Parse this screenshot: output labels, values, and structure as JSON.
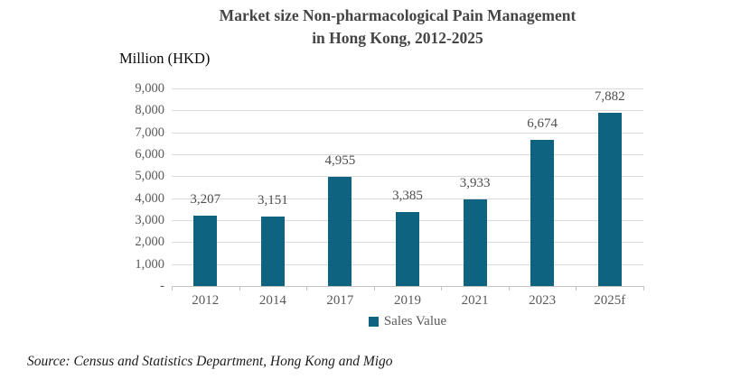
{
  "chart": {
    "title_line1": "Market size Non-pharmacological Pain Management",
    "title_line2": "in Hong Kong, 2012-2025",
    "axis_unit_label": "Million (HKD)",
    "legend_label": "Sales Value",
    "source": "Source: Census and Statistics Department, Hong Kong and Migo"
  },
  "chart_data": {
    "type": "bar",
    "title": "Market size Non-pharmacological Pain Management in Hong Kong, 2012-2025",
    "categories": [
      "2012",
      "2014",
      "2017",
      "2019",
      "2021",
      "2023",
      "2025f"
    ],
    "series": [
      {
        "name": "Sales Value",
        "values": [
          3207,
          3151,
          4955,
          3385,
          3933,
          6674,
          7882
        ]
      }
    ],
    "value_labels": [
      "3,207",
      "3,151",
      "4,955",
      "3,385",
      "3,933",
      "6,674",
      "7,882"
    ],
    "ylabel": "Million (HKD)",
    "ylim": [
      0,
      9000
    ],
    "ytick_interval": 1000,
    "ytick_labels": [
      "-",
      "1,000",
      "2,000",
      "3,000",
      "4,000",
      "5,000",
      "6,000",
      "7,000",
      "8,000",
      "9,000"
    ],
    "grid": true,
    "legend_position": "bottom"
  },
  "colors": {
    "bar": "#0e6380",
    "gridline": "#dadada",
    "axis_line": "#c4c4c4",
    "tick_label": "#595959",
    "value_label": "#4d4d4d",
    "title": "#454545"
  }
}
